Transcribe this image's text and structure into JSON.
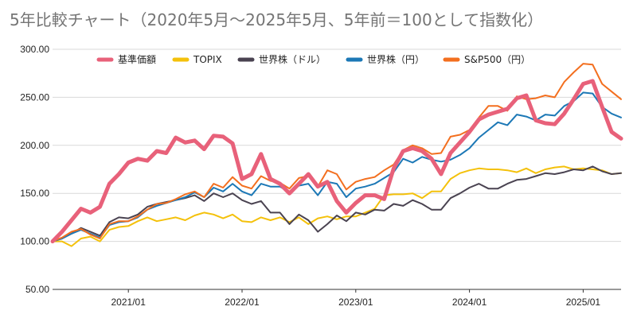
{
  "chart_data": {
    "type": "line",
    "title": "5年比較チャート（2020年5月〜2025年5月、5年前＝100として指数化）",
    "xlabel": "",
    "ylabel": "",
    "ylim": [
      50,
      300
    ],
    "yticks": [
      "50.00",
      "100.00",
      "150.00",
      "200.00",
      "250.00",
      "300.00"
    ],
    "ytick_values": [
      50,
      100,
      150,
      200,
      250,
      300
    ],
    "x_range": [
      "2020-05",
      "2025-05"
    ],
    "xticks": [
      "2021/01",
      "2022/01",
      "2023/01",
      "2024/01",
      "2025/01"
    ],
    "xtick_months": [
      "2021-01",
      "2022-01",
      "2023-01",
      "2024-01",
      "2025-01"
    ],
    "grid": true,
    "legend_position": "top",
    "months": [
      "2020-05",
      "2020-06",
      "2020-07",
      "2020-08",
      "2020-09",
      "2020-10",
      "2020-11",
      "2020-12",
      "2021-01",
      "2021-02",
      "2021-03",
      "2021-04",
      "2021-05",
      "2021-06",
      "2021-07",
      "2021-08",
      "2021-09",
      "2021-10",
      "2021-11",
      "2021-12",
      "2022-01",
      "2022-02",
      "2022-03",
      "2022-04",
      "2022-05",
      "2022-06",
      "2022-07",
      "2022-08",
      "2022-09",
      "2022-10",
      "2022-11",
      "2022-12",
      "2023-01",
      "2023-02",
      "2023-03",
      "2023-04",
      "2023-05",
      "2023-06",
      "2023-07",
      "2023-08",
      "2023-09",
      "2023-10",
      "2023-11",
      "2023-12",
      "2024-01",
      "2024-02",
      "2024-03",
      "2024-04",
      "2024-05",
      "2024-06",
      "2024-07",
      "2024-08",
      "2024-09",
      "2024-10",
      "2024-11",
      "2024-12",
      "2025-01",
      "2025-02",
      "2025-03",
      "2025-04",
      "2025-05"
    ],
    "series": [
      {
        "name": "基準価額",
        "color": "#e8617a",
        "width": 5,
        "values": [
          100,
          110,
          122,
          134,
          130,
          136,
          160,
          170,
          182,
          186,
          184,
          194,
          192,
          208,
          203,
          205,
          196,
          210,
          209,
          202,
          165,
          170,
          191,
          165,
          160,
          150,
          160,
          170,
          157,
          162,
          142,
          130,
          140,
          148,
          148,
          144,
          176,
          194,
          197,
          194,
          186,
          170,
          192,
          203,
          214,
          227,
          232,
          235,
          238,
          249,
          252,
          226,
          223,
          222,
          233,
          248,
          264,
          267,
          240,
          214,
          207
        ]
      },
      {
        "name": "TOPIX",
        "color": "#f4c10b",
        "width": 2,
        "values": [
          100,
          100,
          95,
          103,
          105,
          100,
          112,
          115,
          116,
          121,
          125,
          121,
          123,
          125,
          122,
          127,
          130,
          128,
          124,
          128,
          121,
          120,
          125,
          122,
          125,
          120,
          125,
          118,
          124,
          126,
          123,
          126,
          126,
          130,
          134,
          148,
          149,
          149,
          150,
          145,
          152,
          152,
          165,
          171,
          174,
          176,
          175,
          175,
          174,
          172,
          176,
          171,
          175,
          177,
          178,
          175,
          176,
          175,
          174,
          170,
          171
        ]
      },
      {
        "name": "世界株（ドル）",
        "color": "#4a4351",
        "width": 2,
        "values": [
          100,
          103,
          108,
          114,
          110,
          106,
          120,
          125,
          124,
          128,
          136,
          139,
          141,
          143,
          145,
          148,
          142,
          150,
          146,
          150,
          143,
          139,
          142,
          130,
          130,
          118,
          128,
          122,
          110,
          118,
          127,
          121,
          130,
          128,
          133,
          132,
          139,
          137,
          143,
          139,
          133,
          133,
          145,
          150,
          156,
          160,
          155,
          155,
          160,
          164,
          165,
          168,
          171,
          170,
          172,
          175,
          174,
          178,
          173,
          170,
          171
        ]
      },
      {
        "name": "世界株（円）",
        "color": "#1c78b6",
        "width": 2,
        "values": [
          100,
          103,
          108,
          112,
          108,
          104,
          117,
          120,
          121,
          125,
          133,
          137,
          140,
          143,
          146,
          151,
          146,
          156,
          152,
          160,
          152,
          148,
          160,
          157,
          157,
          151,
          158,
          160,
          148,
          162,
          160,
          146,
          155,
          157,
          160,
          166,
          172,
          186,
          182,
          188,
          185,
          183,
          185,
          190,
          197,
          208,
          216,
          224,
          221,
          232,
          230,
          226,
          232,
          231,
          241,
          246,
          255,
          254,
          240,
          233,
          229
        ]
      },
      {
        "name": "S&P500（円）",
        "color": "#f36f1f",
        "width": 2,
        "values": [
          100,
          104,
          110,
          113,
          107,
          103,
          118,
          121,
          121,
          126,
          133,
          139,
          140,
          144,
          149,
          152,
          146,
          160,
          156,
          167,
          158,
          155,
          168,
          163,
          161,
          155,
          166,
          168,
          157,
          174,
          170,
          154,
          162,
          165,
          167,
          174,
          180,
          195,
          200,
          197,
          191,
          192,
          209,
          211,
          216,
          229,
          241,
          241,
          236,
          251,
          248,
          249,
          252,
          250,
          266,
          276,
          285,
          284,
          264,
          256,
          248
        ]
      }
    ]
  }
}
